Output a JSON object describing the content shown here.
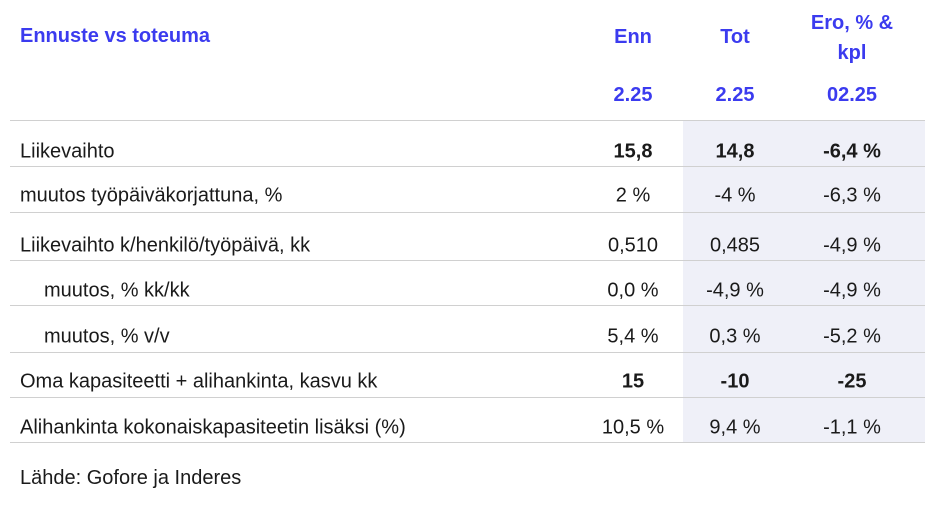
{
  "header": {
    "title": "Ennuste vs toteuma"
  },
  "table": {
    "columns": [
      {
        "name": "Enn",
        "period": "2.25"
      },
      {
        "name": "Tot",
        "period": "2.25"
      },
      {
        "name": "Ero, % & kpl",
        "period": "02.25"
      }
    ],
    "rows": [
      {
        "label": "Liikevaihto",
        "values": [
          "15,8",
          "14,8",
          "-6,4 %"
        ],
        "bold": true
      },
      {
        "label": "muutos työpäiväkorjattuna, %",
        "values": [
          "2 %",
          "-4 %",
          "-6,3 %"
        ]
      },
      {
        "label": "Liikevaihto k/henkilö/työpäivä, kk",
        "values": [
          "0,510",
          "0,485",
          "-4,9 %"
        ]
      },
      {
        "label": "muutos, % kk/kk",
        "values": [
          "0,0 %",
          "-4,9 %",
          "-4,9 %"
        ],
        "indent": true
      },
      {
        "label": "muutos, % v/v",
        "values": [
          "5,4 %",
          "0,3 %",
          "-5,2 %"
        ],
        "indent": true
      },
      {
        "label": "Oma kapasiteetti + alihankinta, kasvu kk",
        "values": [
          "15",
          "-10",
          "-25"
        ],
        "bold": true
      },
      {
        "label": "Alihankinta kokonaiskapasiteetin lisäksi (%)",
        "values": [
          "10,5 %",
          "9,4 %",
          "-1,1 %"
        ]
      }
    ]
  },
  "source": "Lähde: Gofore ja Inderes"
}
